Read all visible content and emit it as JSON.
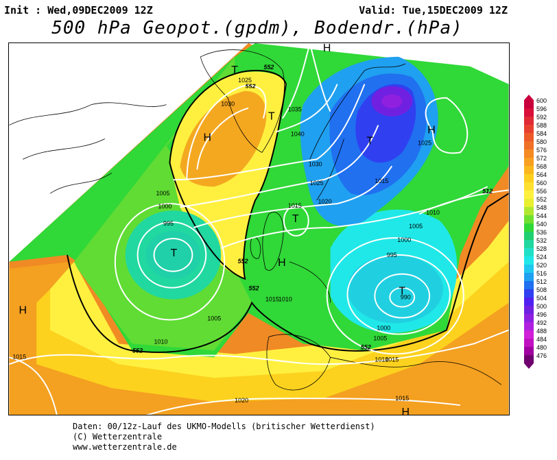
{
  "header": {
    "init": "Init : Wed,09DEC2009 12Z",
    "valid": "Valid: Tue,15DEC2009 12Z",
    "title": "500 hPa Geopot.(gpdm), Bodendr.(hPa)"
  },
  "legend": {
    "levels": [
      "600",
      "596",
      "592",
      "588",
      "584",
      "580",
      "576",
      "572",
      "568",
      "564",
      "560",
      "556",
      "552",
      "548",
      "544",
      "540",
      "536",
      "532",
      "528",
      "524",
      "520",
      "516",
      "512",
      "508",
      "504",
      "500",
      "496",
      "492",
      "488",
      "484",
      "480",
      "476"
    ],
    "colors": [
      "#c8003c",
      "#d8103a",
      "#e02a34",
      "#e8402e",
      "#ec5a2a",
      "#f07028",
      "#f48a22",
      "#f8a020",
      "#fbb81c",
      "#fdd020",
      "#ffe030",
      "#fff040",
      "#e8f030",
      "#b0e830",
      "#70e030",
      "#30d838",
      "#20d070",
      "#20d8a0",
      "#20e0c8",
      "#20e8e8",
      "#20c8f0",
      "#20a0f0",
      "#2070f0",
      "#3040f0",
      "#5020f0",
      "#7020e0",
      "#9020e0",
      "#b020e0",
      "#d020d8",
      "#c010c0",
      "#a000a0",
      "#700070"
    ]
  },
  "map": {
    "pressure_labels": [
      "1025",
      "1030",
      "1035",
      "1040",
      "1030",
      "1025",
      "1020",
      "1015",
      "1015",
      "1010",
      "1005",
      "1000",
      "995",
      "990",
      "1000",
      "1005",
      "1010",
      "1015",
      "1025",
      "1005",
      "1000",
      "995",
      "1005",
      "1010",
      "1015",
      "1020",
      "1015",
      "1010",
      "1015"
    ],
    "geopot_labels": [
      "552",
      "552",
      "552",
      "552",
      "552",
      "552",
      "512"
    ],
    "high_marks": [
      "H",
      "H",
      "H",
      "H",
      "H",
      "H"
    ],
    "low_marks": [
      "T",
      "T",
      "T",
      "T",
      "T",
      "T"
    ]
  },
  "footer": {
    "line1": "Daten: 00/12z-Lauf des UKMO-Modells (britischer Wetterdienst)",
    "line2": "(C) Wetterzentrale",
    "line3": "www.wetterzentrale.de"
  }
}
